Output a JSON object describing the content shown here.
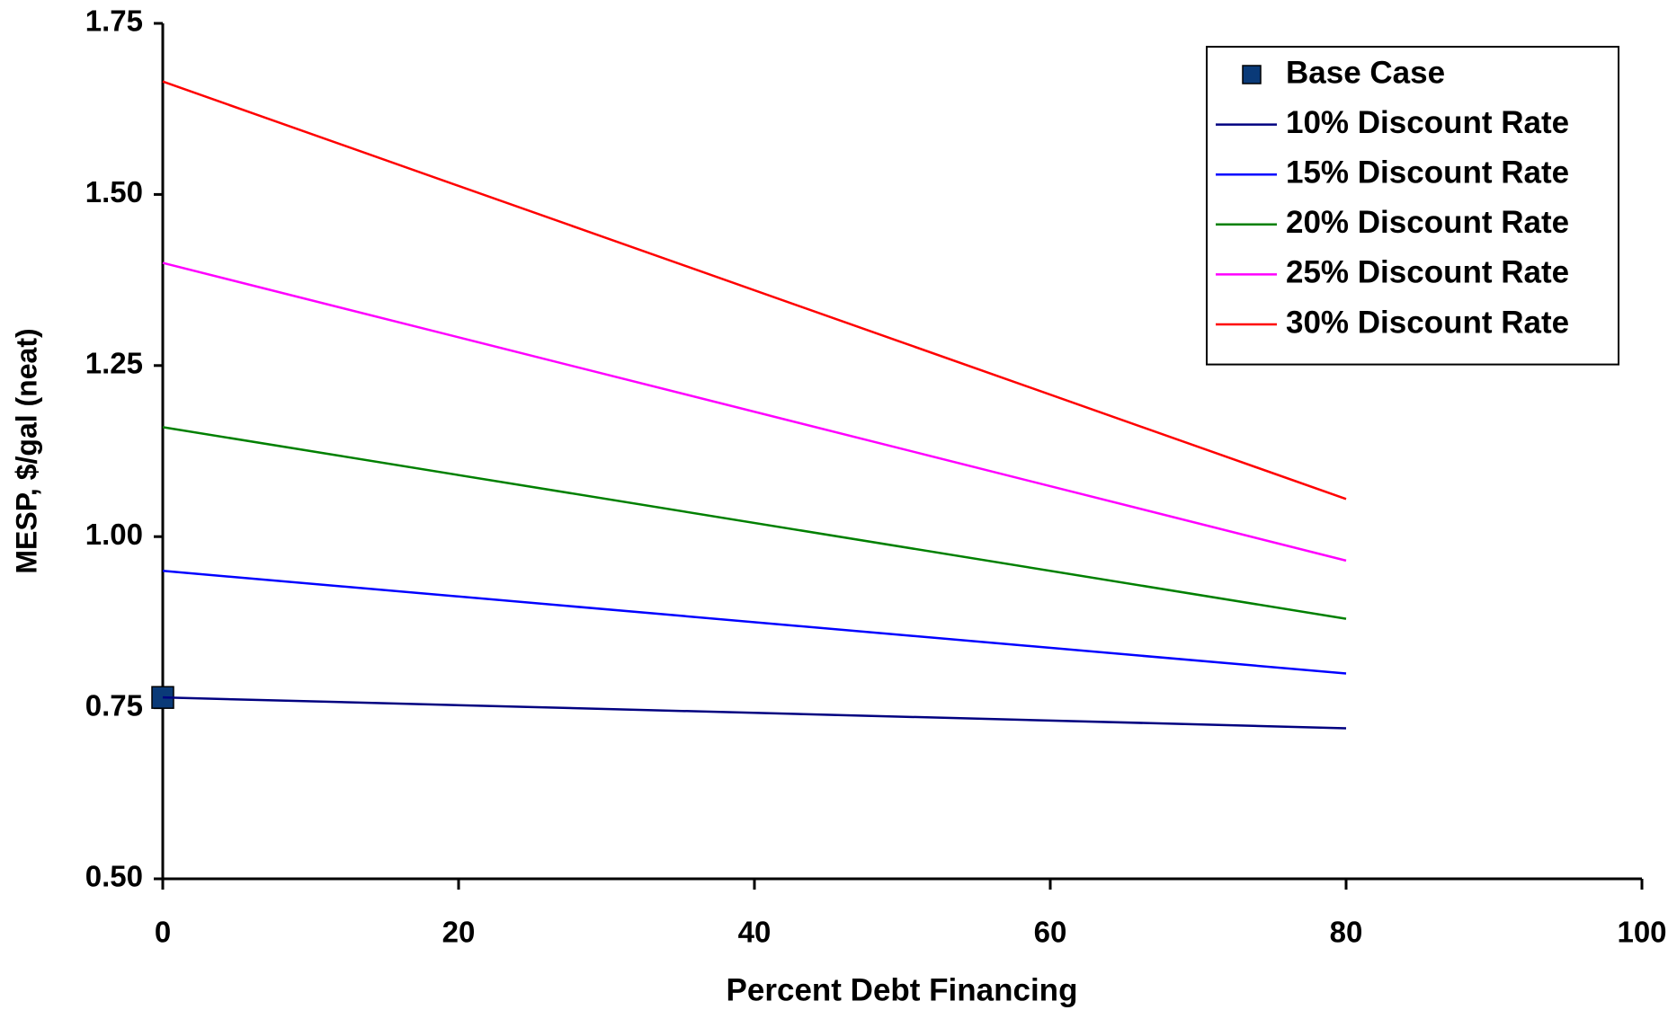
{
  "chart_data": {
    "type": "line",
    "xlabel": "Percent Debt Financing",
    "ylabel": "MESP, $/gal (neat)",
    "xlim": [
      0,
      100
    ],
    "xticks": [
      0,
      20,
      40,
      60,
      80,
      100
    ],
    "ylim": [
      0.5,
      1.75
    ],
    "yticks": [
      {
        "value": 0.5,
        "label": "0.50"
      },
      {
        "value": 0.75,
        "label": "0.75"
      },
      {
        "value": 1.0,
        "label": "1.00"
      },
      {
        "value": 1.25,
        "label": "1.25"
      },
      {
        "value": 1.5,
        "label": "1.50"
      },
      {
        "value": 1.75,
        "label": "1.75"
      }
    ],
    "legend": "upper right",
    "series": [
      {
        "name": "Base Case",
        "color": "#0a3a78",
        "marker": "square",
        "x": [
          0
        ],
        "values": [
          0.765
        ]
      },
      {
        "name": "10% Discount Rate",
        "color": "#000080",
        "x": [
          0,
          80
        ],
        "values": [
          0.765,
          0.72
        ]
      },
      {
        "name": "15% Discount Rate",
        "color": "#0000ff",
        "x": [
          0,
          80
        ],
        "values": [
          0.95,
          0.8
        ]
      },
      {
        "name": "20% Discount Rate",
        "color": "#008000",
        "x": [
          0,
          80
        ],
        "values": [
          1.16,
          0.88
        ]
      },
      {
        "name": "25% Discount Rate",
        "color": "#ff00ff",
        "x": [
          0,
          80
        ],
        "values": [
          1.4,
          0.965
        ]
      },
      {
        "name": "30% Discount Rate",
        "color": "#ff0000",
        "x": [
          0,
          80
        ],
        "values": [
          1.665,
          1.055
        ]
      }
    ]
  }
}
